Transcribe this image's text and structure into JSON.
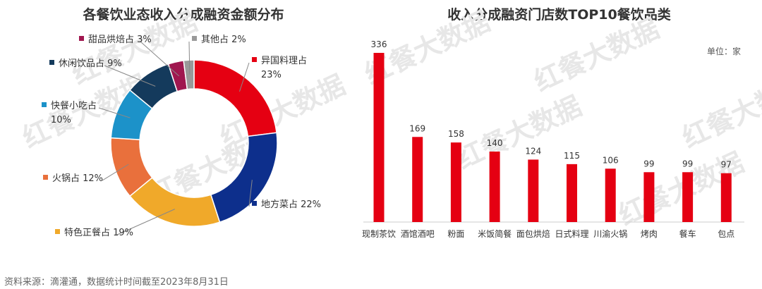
{
  "source_note": "资料来源：滴灌通，数据统计时间截至2023年8月31日",
  "watermark_text": "红餐大数据",
  "chart_data": [
    {
      "type": "pie",
      "title": "各餐饮业态收入分成融资金额分布",
      "slices": [
        {
          "name": "异国料理占",
          "value": 23,
          "label": "23%",
          "color": "#e50012"
        },
        {
          "name": "地方菜占",
          "value": 22,
          "label": "22%",
          "color": "#0d2f8c"
        },
        {
          "name": "特色正餐占",
          "value": 19,
          "label": "19%",
          "color": "#f0a92a"
        },
        {
          "name": "火锅占",
          "value": 12,
          "label": "12%",
          "color": "#e9703c"
        },
        {
          "name": "快餐小吃占",
          "value": 10,
          "label": "10%",
          "color": "#1c92c9"
        },
        {
          "name": "休闲饮品占",
          "value": 9,
          "label": "9%",
          "color": "#143a5c"
        },
        {
          "name": "甜品烘焙占",
          "value": 3,
          "label": "3%",
          "color": "#a0174f"
        },
        {
          "name": "其他占",
          "value": 2,
          "label": "2%",
          "color": "#999999"
        }
      ]
    },
    {
      "type": "bar",
      "title": "收入分成融资门店数TOP10餐饮品类",
      "unit": "单位：家",
      "categories": [
        "现制茶饮",
        "酒馆酒吧",
        "粉面",
        "米饭简餐",
        "面包烘焙",
        "日式料理",
        "川渝火锅",
        "烤肉",
        "餐车",
        "包点"
      ],
      "values": [
        336,
        169,
        158,
        140,
        124,
        115,
        106,
        99,
        99,
        97
      ],
      "color": "#e50012"
    }
  ]
}
